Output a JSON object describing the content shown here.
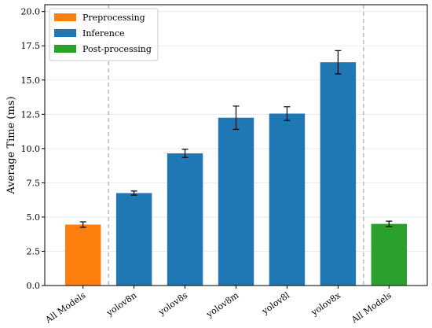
{
  "chart_data": {
    "type": "bar",
    "title": "",
    "xlabel": "",
    "ylabel": "Average Time (ms)",
    "ylim": [
      0,
      20.5
    ],
    "yticks": [
      "0.0",
      "2.5",
      "5.0",
      "7.5",
      "10.0",
      "12.5",
      "15.0",
      "17.5",
      "20.0"
    ],
    "grid": true,
    "legend_position": "top-left",
    "categories": [
      "All Models",
      "yolov8n",
      "yolov8s",
      "yolov8m",
      "yolov8l",
      "yolov8x",
      "All Models"
    ],
    "series": [
      {
        "name": "Preprocessing",
        "color": "#ff7f0e",
        "values": [
          4.45,
          null,
          null,
          null,
          null,
          null,
          null
        ],
        "errors": [
          0.2,
          null,
          null,
          null,
          null,
          null,
          null
        ]
      },
      {
        "name": "Inference",
        "color": "#1f77b4",
        "values": [
          null,
          6.75,
          9.65,
          12.25,
          12.55,
          16.3,
          null
        ],
        "errors": [
          null,
          0.15,
          0.3,
          0.85,
          0.5,
          0.85,
          null
        ]
      },
      {
        "name": "Post-processing",
        "color": "#2ca02c",
        "values": [
          null,
          null,
          null,
          null,
          null,
          null,
          4.5
        ],
        "errors": [
          null,
          null,
          null,
          null,
          null,
          null,
          0.2
        ]
      }
    ],
    "separators_after": [
      0,
      5
    ]
  }
}
